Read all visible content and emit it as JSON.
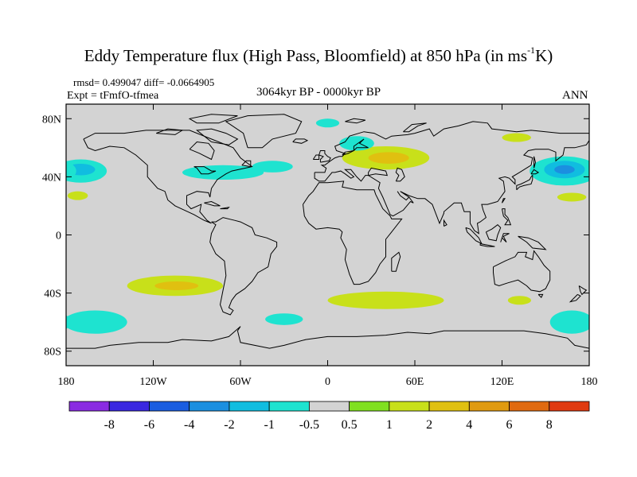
{
  "title": {
    "main": "Eddy Temperature flux (High Pass, Bloomfield) at 850 hPa (in ms",
    "sup": "-1",
    "tail": "K)"
  },
  "stats_line": "rmsd= 0.499047 diff= -0.0664905",
  "experiment": "Expt = tFmfO-tfmea",
  "period": "3064kyr BP - 0000kyr BP",
  "season": "ANN",
  "map": {
    "projection": "cylindrical-equidistant",
    "lon_range": [
      -180,
      180
    ],
    "lat_range": [
      -90,
      90
    ],
    "background_color": "#d3d3d3",
    "y_ticks": [
      "80N",
      "40N",
      "0",
      "40S",
      "80S"
    ],
    "x_ticks": [
      "180",
      "120W",
      "60W",
      "0",
      "60E",
      "120E",
      "180"
    ]
  },
  "colorbar": {
    "levels": [
      "-8",
      "-6",
      "-4",
      "-2",
      "-1",
      "-0.5",
      "0.5",
      "1",
      "2",
      "4",
      "6",
      "8"
    ],
    "colors": [
      "#8a2be2",
      "#3a28e0",
      "#1a5de0",
      "#1b8fe0",
      "#10bde0",
      "#1ee3d0",
      "#d3d3d3",
      "#80e020",
      "#c8e01a",
      "#e0c010",
      "#e09a10",
      "#e06a10",
      "#e03a10"
    ]
  },
  "anomaly_regions": [
    {
      "name": "n-pacific-east-blue",
      "lon": -170,
      "lat": 44,
      "rx": 18,
      "ry": 8,
      "level": "-1"
    },
    {
      "name": "n-pacific-east-core",
      "lon": -170,
      "lat": 45,
      "rx": 10,
      "ry": 4,
      "level": "-2"
    },
    {
      "name": "n-pacific-west-blue",
      "lon": 163,
      "lat": 44,
      "rx": 24,
      "ry": 10,
      "level": "-1"
    },
    {
      "name": "n-pacific-west-mid",
      "lon": 163,
      "lat": 45,
      "rx": 14,
      "ry": 6,
      "level": "-2"
    },
    {
      "name": "n-pacific-west-core",
      "lon": 163,
      "lat": 45,
      "rx": 7,
      "ry": 3,
      "level": "-4"
    },
    {
      "name": "n-atlantic-blue",
      "lon": -72,
      "lat": 43,
      "rx": 28,
      "ry": 5,
      "level": "-1"
    },
    {
      "name": "north-atlantic-east-blue",
      "lon": -38,
      "lat": 47,
      "rx": 14,
      "ry": 4,
      "level": "-1"
    },
    {
      "name": "eurasia-green",
      "lon": 40,
      "lat": 53,
      "rx": 30,
      "ry": 8,
      "level": "1"
    },
    {
      "name": "eurasia-yellow",
      "lon": 42,
      "lat": 53,
      "rx": 14,
      "ry": 4,
      "level": "2"
    },
    {
      "name": "scandinavia-blue",
      "lon": 20,
      "lat": 63,
      "rx": 12,
      "ry": 5,
      "level": "-1"
    },
    {
      "name": "arctic-blue",
      "lon": 0,
      "lat": 77,
      "rx": 8,
      "ry": 3,
      "level": "-1"
    },
    {
      "name": "siberia-green",
      "lon": 130,
      "lat": 67,
      "rx": 10,
      "ry": 3,
      "level": "1"
    },
    {
      "name": "ne-pacific-green",
      "lon": -172,
      "lat": 27,
      "rx": 7,
      "ry": 3,
      "level": "1"
    },
    {
      "name": "nw-pacific-green",
      "lon": 168,
      "lat": 26,
      "rx": 10,
      "ry": 3,
      "level": "1"
    },
    {
      "name": "s-pacific-green",
      "lon": -105,
      "lat": -35,
      "rx": 33,
      "ry": 7,
      "level": "1"
    },
    {
      "name": "s-pacific-yellow",
      "lon": -104,
      "lat": -35,
      "rx": 15,
      "ry": 3,
      "level": "2"
    },
    {
      "name": "south-atlantic-indian-green",
      "lon": 40,
      "lat": -45,
      "rx": 40,
      "ry": 6,
      "level": "1"
    },
    {
      "name": "southern-ocean-blue-west",
      "lon": -160,
      "lat": -60,
      "rx": 22,
      "ry": 8,
      "level": "-1"
    },
    {
      "name": "southern-ocean-blue-mid",
      "lon": -30,
      "lat": -58,
      "rx": 13,
      "ry": 4,
      "level": "-1"
    },
    {
      "name": "southern-ocean-blue-east",
      "lon": 168,
      "lat": -60,
      "rx": 15,
      "ry": 8,
      "level": "-1"
    },
    {
      "name": "australia-green",
      "lon": 132,
      "lat": -45,
      "rx": 8,
      "ry": 3,
      "level": "1"
    }
  ]
}
